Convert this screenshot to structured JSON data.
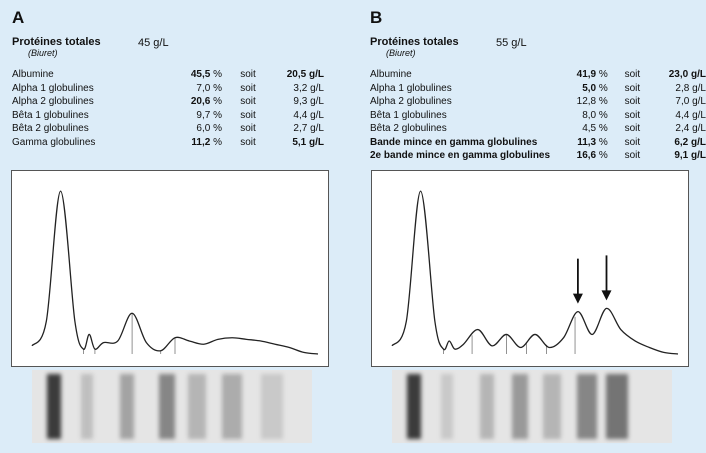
{
  "panels": [
    {
      "letter": "A",
      "total_protein_label": "Protéines totales",
      "method": "(Biuret)",
      "total_protein_value": "45 g/L",
      "fractions": [
        {
          "name": "Albumine",
          "pct": "45,5",
          "unit": "%",
          "soit": "soit",
          "gl": "20,5 g/L",
          "pct_bold": true,
          "gl_bold": true,
          "name_bold": false
        },
        {
          "name": "Alpha 1 globulines",
          "pct": "7,0",
          "unit": "%",
          "soit": "soit",
          "gl": "3,2 g/L",
          "pct_bold": false,
          "gl_bold": false,
          "name_bold": false
        },
        {
          "name": "Alpha 2 globulines",
          "pct": "20,6",
          "unit": "%",
          "soit": "soit",
          "gl": "9,3 g/L",
          "pct_bold": true,
          "gl_bold": false,
          "name_bold": false
        },
        {
          "name": "Bêta 1 globulines",
          "pct": "9,7",
          "unit": "%",
          "soit": "soit",
          "gl": "4,4 g/L",
          "pct_bold": false,
          "gl_bold": false,
          "name_bold": false
        },
        {
          "name": "Bêta 2 globulines",
          "pct": "6,0",
          "unit": "%",
          "soit": "soit",
          "gl": "2,7 g/L",
          "pct_bold": false,
          "gl_bold": false,
          "name_bold": false
        },
        {
          "name": "Gamma globulines",
          "pct": "11,2",
          "unit": "%",
          "soit": "soit",
          "gl": "5,1 g/L",
          "pct_bold": true,
          "gl_bold": true,
          "name_bold": false
        }
      ]
    },
    {
      "letter": "B",
      "total_protein_label": "Protéines totales",
      "method": "(Biuret)",
      "total_protein_value": "55 g/L",
      "fractions": [
        {
          "name": "Albumine",
          "pct": "41,9",
          "unit": "%",
          "soit": "soit",
          "gl": "23,0 g/L",
          "pct_bold": true,
          "gl_bold": true,
          "name_bold": false
        },
        {
          "name": "Alpha 1 globulines",
          "pct": "5,0",
          "unit": "%",
          "soit": "soit",
          "gl": "2,8 g/L",
          "pct_bold": true,
          "gl_bold": false,
          "name_bold": false
        },
        {
          "name": "Alpha 2 globulines",
          "pct": "12,8",
          "unit": "%",
          "soit": "soit",
          "gl": "7,0 g/L",
          "pct_bold": false,
          "gl_bold": false,
          "name_bold": false
        },
        {
          "name": "Bêta 1 globulines",
          "pct": "8,0",
          "unit": "%",
          "soit": "soit",
          "gl": "4,4 g/L",
          "pct_bold": false,
          "gl_bold": false,
          "name_bold": false
        },
        {
          "name": "Bêta 2 globulines",
          "pct": "4,5",
          "unit": "%",
          "soit": "soit",
          "gl": "2,4 g/L",
          "pct_bold": false,
          "gl_bold": false,
          "name_bold": false
        },
        {
          "name": "Bande mince en gamma globulines",
          "pct": "11,3",
          "unit": "%",
          "soit": "soit",
          "gl": "6,2 g/L",
          "pct_bold": true,
          "gl_bold": true,
          "name_bold": true
        },
        {
          "name": "2e bande mince en gamma globulines",
          "pct": "16,6",
          "unit": "%",
          "soit": "soit",
          "gl": "9,1 g/L",
          "pct_bold": true,
          "gl_bold": true,
          "name_bold": true
        }
      ]
    }
  ],
  "chart_data": [
    {
      "type": "line",
      "x": [
        0,
        5,
        10,
        15,
        18,
        20,
        22,
        25,
        30,
        35,
        40,
        45,
        50,
        55,
        60,
        65,
        70,
        75,
        80,
        85,
        90,
        95,
        100
      ],
      "y": [
        0.05,
        0.2,
        1.0,
        0.2,
        0.03,
        0.12,
        0.03,
        0.07,
        0.08,
        0.25,
        0.07,
        0.02,
        0.1,
        0.08,
        0.06,
        0.09,
        0.1,
        0.09,
        0.08,
        0.06,
        0.04,
        0.01,
        0.0
      ],
      "separators": [
        18,
        22,
        35,
        45,
        50
      ],
      "gel_bands": [
        0.9,
        0.2,
        0.35,
        0.5,
        0.25,
        0.3,
        0.15
      ],
      "ylim": [
        0,
        1.05
      ],
      "grid": false
    },
    {
      "type": "line",
      "x": [
        0,
        5,
        10,
        15,
        18,
        20,
        22,
        25,
        30,
        35,
        40,
        45,
        50,
        55,
        60,
        65,
        70,
        75,
        80,
        85,
        90,
        95,
        100
      ],
      "y": [
        0.05,
        0.2,
        1.0,
        0.2,
        0.03,
        0.08,
        0.03,
        0.06,
        0.15,
        0.05,
        0.12,
        0.04,
        0.12,
        0.04,
        0.1,
        0.26,
        0.12,
        0.28,
        0.15,
        0.08,
        0.04,
        0.01,
        0.0
      ],
      "separators": [
        18,
        28,
        40,
        47,
        54,
        64
      ],
      "annotation_arrows": [
        65,
        75
      ],
      "gel_bands": [
        0.9,
        0.15,
        0.25,
        0.4,
        0.25,
        0.5,
        0.6
      ],
      "ylim": [
        0,
        1.05
      ],
      "grid": false
    }
  ]
}
